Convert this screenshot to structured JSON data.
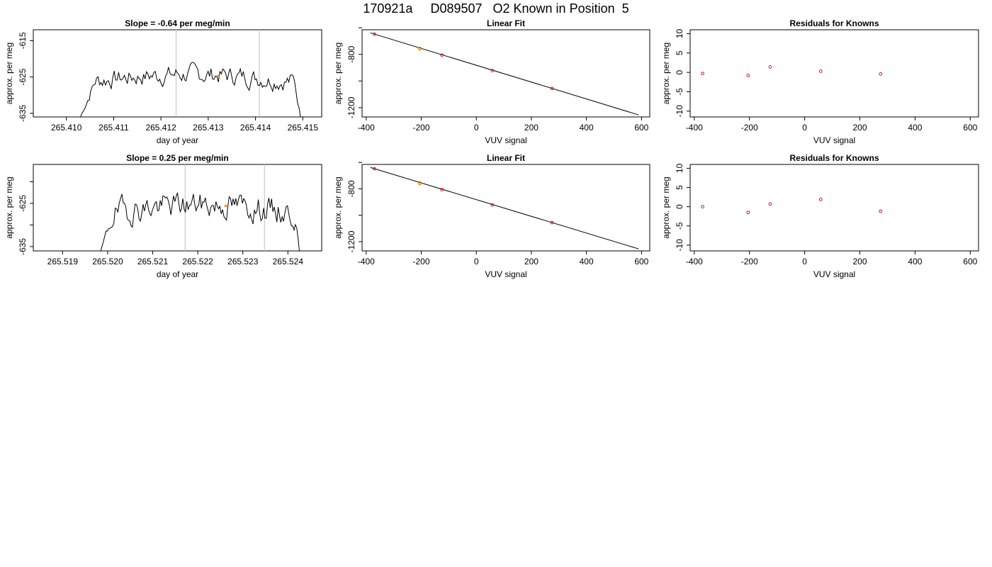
{
  "page_title": "170921a     D089507   O2 Known in Position  5",
  "colors": {
    "trace": "#000000",
    "marker": "#ff8c00",
    "point": "#cc0000",
    "vline": "#c8c8c8",
    "frame": "#000000"
  },
  "chart_data": [
    {
      "id": "ts1",
      "type": "line",
      "title": "Slope =  -0.64  per meg/min",
      "xlabel": "day of year",
      "ylabel": "approx. per meg",
      "xlim": [
        265.4093,
        265.4154
      ],
      "ylim": [
        -636,
        -612
      ],
      "xticks": [
        265.41,
        265.411,
        265.412,
        265.413,
        265.414,
        265.415
      ],
      "xtick_labels": [
        "265.410",
        "265.411",
        "265.412",
        "265.413",
        "265.414",
        "265.415"
      ],
      "yticks": [
        -615,
        -625,
        -635
      ],
      "ytick_labels": [
        "-615",
        "-625",
        "-635"
      ],
      "x_start": 265.41025,
      "x_end": 265.415,
      "signal_base": -626.5,
      "signal_amp": 2.6,
      "signal_seed": 7,
      "edge_start_y": -636,
      "edge_end_y": -636,
      "vlines": [
        265.41232,
        265.41408
      ],
      "marker": {
        "x": 265.41321,
        "y": -624.8
      },
      "grid": false,
      "legend": "none"
    },
    {
      "id": "fit1",
      "type": "scatter",
      "title": "Linear Fit",
      "xlabel": "VUV signal",
      "ylabel": "approx. per meg",
      "xlim": [
        -415,
        630
      ],
      "ylim": [
        -1270,
        -615
      ],
      "xticks": [
        -400,
        -200,
        0,
        200,
        400,
        600
      ],
      "xtick_labels": [
        "-400",
        "-200",
        "0",
        "200",
        "400",
        "600"
      ],
      "yticks": [
        -800,
        -1200
      ],
      "ytick_labels": [
        "-800",
        "-1200"
      ],
      "minor_yticks": [
        -1000,
        -600
      ],
      "points": [
        {
          "x": -370,
          "y": -648
        },
        {
          "x": -205,
          "y": -757
        },
        {
          "x": -125,
          "y": -806
        },
        {
          "x": 58,
          "y": -922
        },
        {
          "x": 275,
          "y": -1056
        }
      ],
      "highlight": [
        {
          "x": -205,
          "y": -757
        }
      ],
      "fit_line": {
        "x": [
          -385,
          590
        ],
        "y": [
          -638,
          -1255
        ]
      },
      "grid": false,
      "legend": "none"
    },
    {
      "id": "res1",
      "type": "scatter",
      "title": "Residuals for Knowns",
      "xlabel": "VUV signal",
      "ylabel": "approx. per meg",
      "xlim": [
        -415,
        630
      ],
      "ylim": [
        -11.5,
        11
      ],
      "xticks": [
        -400,
        -200,
        0,
        200,
        400,
        600
      ],
      "xtick_labels": [
        "-400",
        "-200",
        "0",
        "200",
        "400",
        "600"
      ],
      "yticks": [
        10,
        5,
        0,
        -5,
        -10
      ],
      "ytick_labels": [
        "10",
        "5",
        "0",
        "-5",
        "-10"
      ],
      "points": [
        {
          "x": -370,
          "y": -0.3
        },
        {
          "x": -205,
          "y": -0.8
        },
        {
          "x": -125,
          "y": 1.4
        },
        {
          "x": 58,
          "y": 0.3
        },
        {
          "x": 275,
          "y": -0.4
        }
      ],
      "grid": false,
      "legend": "none"
    },
    {
      "id": "ts2",
      "type": "line",
      "title": "Slope =  0.25  per meg/min",
      "xlabel": "day of year",
      "ylabel": "approx. per meg",
      "xlim": [
        265.51835,
        265.52475
      ],
      "ylim": [
        -636,
        -616
      ],
      "xticks": [
        265.519,
        265.52,
        265.521,
        265.522,
        265.523,
        265.524
      ],
      "xtick_labels": [
        "265.519",
        "265.520",
        "265.521",
        "265.522",
        "265.523",
        "265.524"
      ],
      "yticks": [
        -625,
        -635
      ],
      "ytick_labels": [
        "-625",
        "-635"
      ],
      "minor_yticks": [
        -620,
        -630
      ],
      "x_start": 265.5198,
      "x_end": 265.5243,
      "signal_base": -627.5,
      "signal_amp": 3.0,
      "signal_seed": 19,
      "edge_start_y": -636,
      "edge_end_y": -636,
      "vlines": [
        265.52172,
        265.52348
      ],
      "marker": {
        "x": 265.52262,
        "y": -625.6
      },
      "grid": false,
      "legend": "none"
    },
    {
      "id": "fit2",
      "type": "scatter",
      "title": "Linear Fit",
      "xlabel": "VUV signal",
      "ylabel": "approx. per meg",
      "xlim": [
        -415,
        630
      ],
      "ylim": [
        -1270,
        -615
      ],
      "xticks": [
        -400,
        -200,
        0,
        200,
        400,
        600
      ],
      "xtick_labels": [
        "-400",
        "-200",
        "0",
        "200",
        "400",
        "600"
      ],
      "yticks": [
        -800,
        -1200
      ],
      "ytick_labels": [
        "-800",
        "-1200"
      ],
      "minor_yticks": [
        -1000,
        -600
      ],
      "points": [
        {
          "x": -370,
          "y": -648
        },
        {
          "x": -205,
          "y": -757
        },
        {
          "x": -125,
          "y": -806
        },
        {
          "x": 58,
          "y": -922
        },
        {
          "x": 275,
          "y": -1056
        }
      ],
      "highlight": [
        {
          "x": -205,
          "y": -757
        }
      ],
      "fit_line": {
        "x": [
          -385,
          590
        ],
        "y": [
          -638,
          -1255
        ]
      },
      "grid": false,
      "legend": "none"
    },
    {
      "id": "res2",
      "type": "scatter",
      "title": "Residuals for Knowns",
      "xlabel": "VUV signal",
      "ylabel": "approx. per meg",
      "xlim": [
        -415,
        630
      ],
      "ylim": [
        -11.5,
        11
      ],
      "xticks": [
        -400,
        -200,
        0,
        200,
        400,
        600
      ],
      "xtick_labels": [
        "-400",
        "-200",
        "0",
        "200",
        "400",
        "600"
      ],
      "yticks": [
        10,
        5,
        0,
        -5,
        -10
      ],
      "ytick_labels": [
        "10",
        "5",
        "0",
        "-5",
        "-10"
      ],
      "points": [
        {
          "x": -370,
          "y": 0.0
        },
        {
          "x": -205,
          "y": -1.5
        },
        {
          "x": -125,
          "y": 0.7
        },
        {
          "x": 58,
          "y": 1.9
        },
        {
          "x": 275,
          "y": -1.2
        }
      ],
      "grid": false,
      "legend": "none"
    }
  ]
}
